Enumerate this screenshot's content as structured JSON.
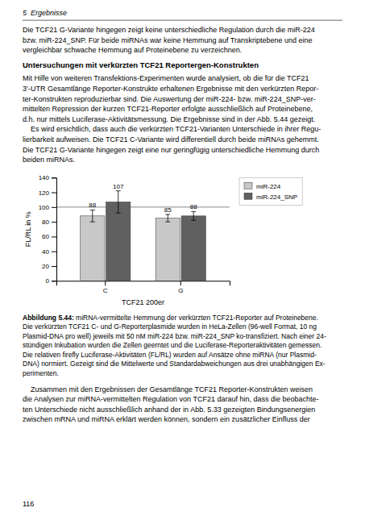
{
  "header": "5  Ergebnisse",
  "para1": [
    "Die TCF21 G-Variante hingegen zeigt keine unterschiedliche Regulation durch die miR-224",
    "bzw. miR-224_SNP. Für beide miRNAs war keine Hemmung auf Transkriptebene und eine",
    "vergleichbar schwache Hemmung auf Proteinebene zu verzeichnen."
  ],
  "section_title": "Untersuchungen mit verkürzten TCF21 Reportergen-Konstrukten",
  "para2": [
    "Mit Hilfe von weiteren Transfektions-Experimenten wurde analysiert, ob die für die TCF21",
    "3’-UTR Gesamtlänge Reporter-Konstrukte erhaltenen Ergebnisse mit den verkürzten Repor-",
    "ter-Konstrukten reproduzierbar sind. Die Auswertung der miR-224- bzw. miR-224_SNP-ver-",
    "mittelten Repression der kurzen TCF21-Reporter erfolgte ausschließlich auf Proteinebene,",
    "d.h. nur mittels Luciferase-Aktivitätsmessung. Die Ergebnisse sind in der Abb. 5.44 gezeigt.",
    "    Es wird ersichtlich, dass auch die verkürzten TCF21-Varianten Unterschiede in ihrer Regu-",
    "lierbarkeit aufweisen. Die TCF21 C-Variante wird differentiell durch beide miRNAs gehemmt.",
    "Die TCF21 G-Variante hingegen zeigt eine nur geringfügig unterschiedliche Hemmung durch",
    "beiden miRNAs."
  ],
  "chart_data": {
    "type": "bar",
    "categories": [
      "C",
      "G"
    ],
    "series": [
      {
        "name": "miR-224",
        "color": "#c8c8c8",
        "values": [
          88,
          85
        ],
        "errors": [
          8,
          5
        ]
      },
      {
        "name": "miR-224_SNP",
        "color": "#606060",
        "values": [
          107,
          88
        ],
        "errors": [
          15,
          6
        ]
      }
    ],
    "xlabel": "TCF21 200er",
    "ylabel": "FL/RL in %",
    "ylim": [
      0,
      140
    ],
    "yticks": [
      0,
      20,
      40,
      60,
      80,
      100,
      120,
      140
    ],
    "reference_line": {
      "value": 100,
      "color": "#888888"
    },
    "data_labels": true,
    "legend": "upper right",
    "grid": false
  },
  "caption_bold": "Abbildung 5.44:",
  "caption_text": [
    " miRNA-vermittelte Hemmung der verkürzten TCF21-Reporter auf Proteinebene.",
    "Die verkürzten TCF21 C- und G-Reporterplasmide wurden in HeLa-Zellen (96-well Format, 10 ng",
    "Plasmid-DNA pro well) jeweils mit 50 nM miR-224 bzw. miR-224_SNP ko-transfiziert. Nach einer 24-",
    "stündigen Inkubation wurden die Zellen geerntet und die Luciferase-Reporteraktivitäten gemessen.",
    "Die relativen firefly Luciferase-Aktivitäten (FL/RL) wurden auf Ansätze ohne miRNA (nur Plasmid-",
    "DNA) normiert. Gezeigt sind die Mittelwerte und Standardabweichungen aus drei unabhängigen Ex-",
    "perimenten."
  ],
  "para3": [
    "    Zusammen mit den Ergebnissen der Gesamtlänge TCF21 Reporter-Konstrukten weisen",
    "die Analysen zur miRNA-vermittelten Regulation von TCF21 darauf hin, dass die beobachte-",
    "ten Unterschiede nicht ausschließlich anhand der in Abb. 5.33 gezeigten Bindungsenergien",
    "zwischen mRNA und miRNA erklärt werden können, sondern ein zusätzlicher Einfluss der"
  ],
  "footer": "116"
}
